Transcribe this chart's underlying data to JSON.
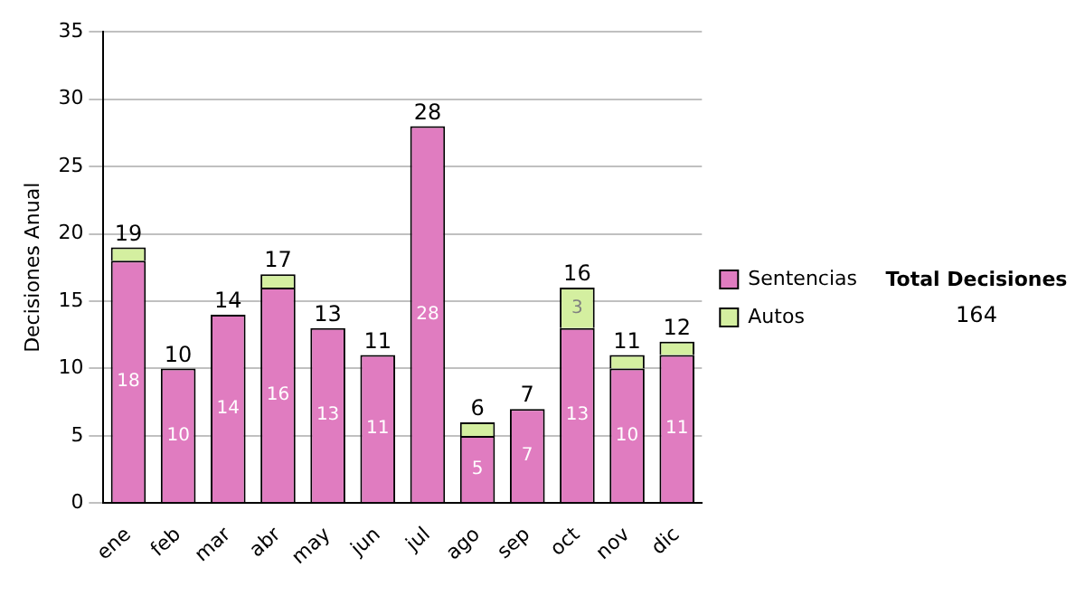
{
  "chart_data": {
    "type": "bar",
    "ylabel": "Decisiones Anual",
    "categories": [
      "ene",
      "feb",
      "mar",
      "abr",
      "may",
      "jun",
      "jul",
      "ago",
      "sep",
      "oct",
      "nov",
      "dic"
    ],
    "series": [
      {
        "name": "Sentencias",
        "color": "#e07cc0",
        "values": [
          18,
          10,
          14,
          16,
          13,
          11,
          28,
          5,
          7,
          13,
          10,
          11
        ],
        "value_labels": [
          "18",
          "10",
          "14",
          "16",
          "13",
          "11",
          "28",
          "5",
          "7",
          "13",
          "10",
          "11"
        ]
      },
      {
        "name": "Autos",
        "color": "#d4efa0",
        "values": [
          1,
          0,
          0,
          1,
          0,
          0,
          0,
          1,
          0,
          3,
          1,
          1
        ],
        "value_labels": [
          null,
          null,
          null,
          null,
          null,
          null,
          null,
          null,
          null,
          "3",
          null,
          null
        ]
      }
    ],
    "stacked": true,
    "totals": [
      "19",
      "10",
      "14",
      "17",
      "13",
      "11",
      "28",
      "6",
      "7",
      "16",
      "11",
      "12"
    ],
    "ylim": [
      0,
      35
    ],
    "yticks": [
      0,
      5,
      10,
      15,
      20,
      25,
      30,
      35
    ],
    "grid": "y",
    "legend": "right",
    "annotations": [
      "Total Decisiones",
      "164"
    ]
  }
}
